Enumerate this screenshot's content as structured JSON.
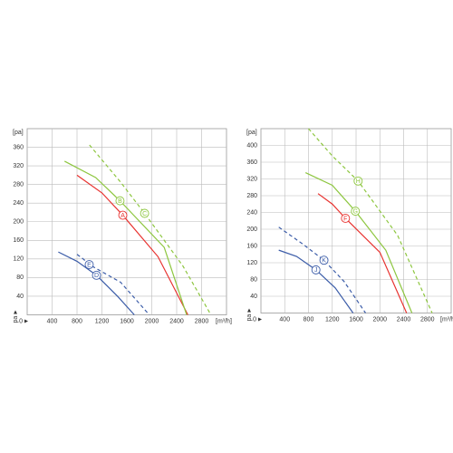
{
  "chart_data": [
    {
      "type": "line",
      "y_axis_label": "[pa]",
      "x_axis_label": "[m³/h]",
      "origin_label": "0",
      "y_axis_label_bottom": "pa",
      "xlim": [
        0,
        3200
      ],
      "xticks": [
        400,
        800,
        1200,
        1600,
        2000,
        2400,
        2800
      ],
      "ylim": [
        0,
        400
      ],
      "yticks": [
        40,
        80,
        120,
        160,
        200,
        240,
        280,
        320,
        360
      ],
      "grid": true,
      "series": [
        {
          "name": "A",
          "color": "#e8322f",
          "style": "solid",
          "x": [
            800,
            1200,
            1535,
            2100,
            2580
          ],
          "values": [
            300,
            262,
            214,
            125,
            0
          ]
        },
        {
          "name": "B",
          "color": "#8dc63f",
          "style": "solid",
          "x": [
            600,
            1100,
            1490,
            2200,
            2560
          ],
          "values": [
            330,
            295,
            245,
            145,
            0
          ]
        },
        {
          "name": "C",
          "color": "#8dc63f",
          "style": "dashed",
          "x": [
            1000,
            1500,
            1885,
            2500,
            2950
          ],
          "values": [
            365,
            285,
            218,
            105,
            0
          ]
        },
        {
          "name": "D",
          "color": "#3b5ca8",
          "style": "solid",
          "x": [
            500,
            800,
            1113,
            1450,
            1720
          ],
          "values": [
            135,
            115,
            85,
            40,
            0
          ]
        },
        {
          "name": "E",
          "color": "#3b5ca8",
          "style": "dashed",
          "x": [
            800,
            900,
            996,
            1500,
            1960
          ],
          "values": [
            130,
            120,
            108,
            70,
            0
          ]
        }
      ]
    },
    {
      "type": "line",
      "y_axis_label": "[pa]",
      "x_axis_label": "[m³/h]",
      "origin_label": "0",
      "y_axis_label_bottom": "pa",
      "xlim": [
        0,
        3200
      ],
      "xticks": [
        400,
        800,
        1200,
        1600,
        2000,
        2400,
        2800
      ],
      "ylim": [
        0,
        440
      ],
      "yticks": [
        40,
        80,
        120,
        160,
        200,
        240,
        280,
        320,
        360,
        400
      ],
      "grid": true,
      "series": [
        {
          "name": "F",
          "color": "#e8322f",
          "style": "solid",
          "x": [
            960,
            1200,
            1422,
            2000,
            2450
          ],
          "values": [
            285,
            260,
            226,
            145,
            0
          ]
        },
        {
          "name": "G",
          "color": "#8dc63f",
          "style": "solid",
          "x": [
            750,
            1200,
            1589,
            2100,
            2540
          ],
          "values": [
            335,
            305,
            243,
            150,
            0
          ]
        },
        {
          "name": "H",
          "color": "#8dc63f",
          "style": "dashed",
          "x": [
            800,
            1200,
            1635,
            2300,
            2880
          ],
          "values": [
            440,
            375,
            315,
            185,
            0
          ]
        },
        {
          "name": "J",
          "color": "#3b5ca8",
          "style": "solid",
          "x": [
            300,
            600,
            925,
            1250,
            1550
          ],
          "values": [
            150,
            135,
            103,
            60,
            0
          ]
        },
        {
          "name": "K",
          "color": "#3b5ca8",
          "style": "dashed",
          "x": [
            300,
            700,
            1060,
            1400,
            1760
          ],
          "values": [
            205,
            165,
            126,
            75,
            0
          ]
        }
      ]
    }
  ]
}
